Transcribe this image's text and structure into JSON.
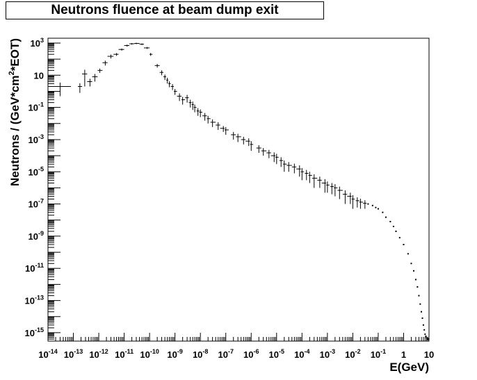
{
  "chart_data": {
    "type": "scatter",
    "title": "Neutrons fluence at beam dump exit",
    "xlabel": "E(GeV)",
    "ylabel": "Neutrons / (GeV*cm^2*EOT)",
    "ylabel_parts": [
      "Neutrons / (GeV*cm",
      "2",
      "*EOT)"
    ],
    "x_scale": "log",
    "y_scale": "log",
    "xlim": [
      1e-14,
      10
    ],
    "ylim": [
      3e-16,
      2000
    ],
    "grid": false,
    "legend": "none",
    "x_ticks": [
      {
        "value": 1e-14,
        "base": "10",
        "exp": "-14"
      },
      {
        "value": 1e-13,
        "base": "10",
        "exp": "-13"
      },
      {
        "value": 1e-12,
        "base": "10",
        "exp": "-12"
      },
      {
        "value": 1e-11,
        "base": "10",
        "exp": "-11"
      },
      {
        "value": 1e-10,
        "base": "10",
        "exp": "-10"
      },
      {
        "value": 1e-09,
        "base": "10",
        "exp": "-9"
      },
      {
        "value": 1e-08,
        "base": "10",
        "exp": "-8"
      },
      {
        "value": 1e-07,
        "base": "10",
        "exp": "-7"
      },
      {
        "value": 1e-06,
        "base": "10",
        "exp": "-6"
      },
      {
        "value": 1e-05,
        "base": "10",
        "exp": "-5"
      },
      {
        "value": 0.0001,
        "base": "10",
        "exp": "-4"
      },
      {
        "value": 0.001,
        "base": "10",
        "exp": "-3"
      },
      {
        "value": 0.01,
        "base": "10",
        "exp": "-2"
      },
      {
        "value": 0.1,
        "base": "10",
        "exp": "-1"
      },
      {
        "value": 1,
        "base": "1",
        "exp": ""
      },
      {
        "value": 10,
        "base": "10",
        "exp": ""
      }
    ],
    "y_ticks": [
      {
        "value": 1e-15,
        "base": "10",
        "exp": "-15"
      },
      {
        "value": 1e-13,
        "base": "10",
        "exp": "-13"
      },
      {
        "value": 1e-11,
        "base": "10",
        "exp": "-11"
      },
      {
        "value": 1e-09,
        "base": "10",
        "exp": "-9"
      },
      {
        "value": 1e-07,
        "base": "10",
        "exp": "-7"
      },
      {
        "value": 1e-05,
        "base": "10",
        "exp": "-5"
      },
      {
        "value": 0.001,
        "base": "10",
        "exp": "-3"
      },
      {
        "value": 0.1,
        "base": "10",
        "exp": "-1"
      },
      {
        "value": 10,
        "base": "10",
        "exp": ""
      },
      {
        "value": 1000,
        "base": "10",
        "exp": "3"
      }
    ],
    "series": [
      {
        "marker": "error-cross",
        "color": "#000000",
        "x": [
          3e-14,
          1.8e-13,
          2.8e-13,
          4.5e-13,
          7e-13,
          1.1e-12,
          1.8e-12,
          3e-12,
          5e-12,
          8e-12,
          1.3e-11,
          2e-11,
          3e-11,
          5e-11,
          8e-11,
          1.1e-10,
          2e-10,
          3e-10,
          4e-10,
          5e-10,
          6e-10,
          8e-10,
          1e-09,
          1.5e-09,
          2e-09,
          3e-09,
          4e-09,
          5e-09,
          6e-09,
          8e-09,
          1e-08,
          1.5e-08,
          2e-08,
          3e-08,
          5e-08,
          8e-08,
          1e-07,
          2e-07,
          3e-07,
          5e-07,
          8e-07,
          1e-06,
          2e-06,
          3e-06,
          5e-06,
          8e-06,
          1e-05,
          1.5e-05,
          2e-05,
          3e-05,
          5e-05,
          8e-05,
          0.0001,
          0.00015,
          0.0002,
          0.0003,
          0.0005,
          0.0008,
          0.001,
          0.0015,
          0.002,
          0.003,
          0.005,
          0.008,
          0.01,
          0.015,
          0.02,
          0.03
        ],
        "y": [
          2,
          2,
          12,
          4,
          8,
          20,
          60,
          150,
          200,
          400,
          700,
          900,
          950,
          850,
          500,
          200,
          40,
          15,
          8,
          5,
          3,
          2,
          1,
          0.5,
          0.3,
          0.4,
          0.2,
          0.15,
          0.1,
          0.06,
          0.05,
          0.03,
          0.02,
          0.012,
          0.008,
          0.005,
          0.004,
          0.002,
          0.0015,
          0.001,
          0.0008,
          0.0005,
          0.0003,
          0.0002,
          0.00015,
          0.0001,
          8e-05,
          5e-05,
          3e-05,
          2.5e-05,
          2e-05,
          1.5e-05,
          1e-05,
          8e-06,
          6e-06,
          4e-06,
          3e-06,
          2e-06,
          1.5e-06,
          1.2e-06,
          1e-06,
          7e-07,
          4e-07,
          3e-07,
          2e-07,
          1.6e-07,
          1.3e-07,
          1.1e-07
        ],
        "yerr": [
          1.5,
          1.2,
          10,
          2,
          4,
          6,
          20,
          40,
          40,
          60,
          100,
          100,
          100,
          100,
          70,
          40,
          10,
          5,
          3,
          2,
          1.2,
          0.8,
          0.4,
          0.25,
          0.15,
          0.2,
          0.1,
          0.08,
          0.05,
          0.03,
          0.025,
          0.015,
          0.01,
          0.006,
          0.004,
          0.002,
          0.002,
          0.001,
          0.0008,
          0.0005,
          0.0004,
          0.0003,
          0.00015,
          0.0001,
          8e-05,
          6e-05,
          5e-05,
          3e-05,
          2e-05,
          1.5e-05,
          1.2e-05,
          1e-05,
          7e-06,
          5e-06,
          4e-06,
          3e-06,
          2e-06,
          1.5e-06,
          1e-06,
          8e-07,
          7e-07,
          5e-07,
          3e-07,
          2e-07,
          1.5e-07,
          1e-07,
          8e-08,
          6e-08
        ],
        "x_bin": [
          [
            1e-14,
            8e-14
          ],
          [
            1.5e-13,
            2.2e-13
          ],
          [
            2.2e-13,
            3.5e-13
          ],
          [
            3.5e-13,
            5.5e-13
          ],
          [
            5.5e-13,
            9e-13
          ],
          [
            9e-13,
            1.4e-12
          ],
          [
            1.4e-12,
            2.2e-12
          ],
          [
            2.2e-12,
            3.8e-12
          ],
          [
            3.8e-12,
            6e-12
          ],
          [
            6e-12,
            1e-11
          ],
          [
            1e-11,
            1.6e-11
          ],
          [
            1.6e-11,
            2.5e-11
          ],
          [
            2.5e-11,
            4e-11
          ],
          [
            4e-11,
            6e-11
          ],
          [
            6e-11,
            1e-10
          ],
          [
            1e-10,
            1.3e-10
          ],
          [
            1.6e-10,
            2.5e-10
          ],
          [
            2.5e-10,
            3.5e-10
          ],
          [
            3.5e-10,
            4.5e-10
          ],
          [
            4.5e-10,
            5.5e-10
          ],
          [
            5.5e-10,
            6.8e-10
          ],
          [
            6.8e-10,
            9e-10
          ],
          [
            9e-10,
            1.2e-09
          ],
          [
            1.2e-09,
            1.8e-09
          ],
          [
            1.8e-09,
            2.5e-09
          ],
          [
            2.5e-09,
            3.5e-09
          ],
          [
            3.5e-09,
            4.5e-09
          ],
          [
            4.5e-09,
            5.5e-09
          ],
          [
            5.5e-09,
            7e-09
          ],
          [
            7e-09,
            9e-09
          ],
          [
            9e-09,
            1.2e-08
          ],
          [
            1.2e-08,
            1.8e-08
          ],
          [
            1.8e-08,
            2.5e-08
          ],
          [
            2.5e-08,
            4e-08
          ],
          [
            4e-08,
            6e-08
          ],
          [
            6e-08,
            9e-08
          ],
          [
            9e-08,
            1.3e-07
          ],
          [
            1.6e-07,
            2.5e-07
          ],
          [
            2.5e-07,
            4e-07
          ],
          [
            4e-07,
            6e-07
          ],
          [
            6e-07,
            9e-07
          ],
          [
            9e-07,
            1.2e-06
          ],
          [
            1.6e-06,
            2.5e-06
          ],
          [
            2.5e-06,
            4e-06
          ],
          [
            4e-06,
            6e-06
          ],
          [
            6e-06,
            9e-06
          ],
          [
            9e-06,
            1.2e-05
          ],
          [
            1.3e-05,
            1.8e-05
          ],
          [
            1.8e-05,
            2.5e-05
          ],
          [
            2.5e-05,
            4e-05
          ],
          [
            4e-05,
            6e-05
          ],
          [
            6e-05,
            9e-05
          ],
          [
            9e-05,
            0.00012
          ],
          [
            0.00013,
            0.00018
          ],
          [
            0.00018,
            0.00025
          ],
          [
            0.00025,
            0.0004
          ],
          [
            0.0004,
            0.0006
          ],
          [
            0.0006,
            0.0009
          ],
          [
            0.0009,
            0.0012
          ],
          [
            0.0013,
            0.0018
          ],
          [
            0.0018,
            0.0025
          ],
          [
            0.0025,
            0.004
          ],
          [
            0.004,
            0.006
          ],
          [
            0.006,
            0.009
          ],
          [
            0.009,
            0.012
          ],
          [
            0.013,
            0.018
          ],
          [
            0.018,
            0.025
          ],
          [
            0.025,
            0.035
          ]
        ]
      },
      {
        "marker": "dot",
        "color": "#000000",
        "x": [
          0.04,
          0.06,
          0.08,
          0.1,
          0.15,
          0.2,
          0.3,
          0.4,
          0.5,
          0.7,
          1,
          1.5,
          2,
          2.5,
          3,
          3.5,
          4,
          4.5,
          5,
          5.5,
          6,
          6.5,
          7,
          7.5,
          8,
          8.5,
          9,
          9.5
        ],
        "y": [
          1e-07,
          8e-08,
          6e-08,
          5e-08,
          3e-08,
          1.5e-08,
          8e-09,
          4e-09,
          2e-09,
          8e-10,
          3e-10,
          8e-11,
          2e-11,
          7e-12,
          2e-12,
          7e-13,
          2e-13,
          6e-14,
          2e-14,
          8e-15,
          3e-15,
          1.5e-15,
          8e-16,
          6e-16,
          5e-16,
          4e-16,
          4e-16,
          4e-16
        ]
      }
    ]
  }
}
